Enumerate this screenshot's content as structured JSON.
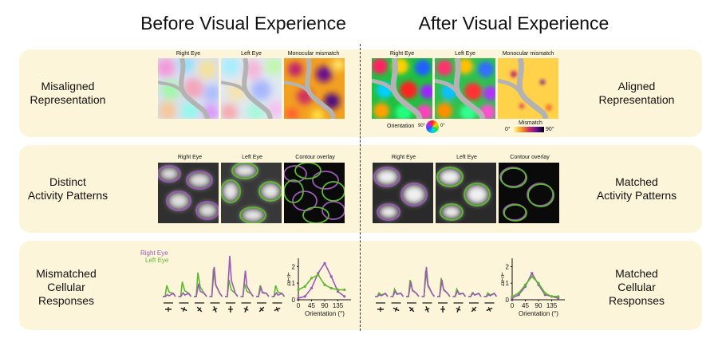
{
  "titles": {
    "before": "Before Visual Experience",
    "after": "After Visual Experience"
  },
  "rows": {
    "row1": {
      "left": "Misaligned\nRepresentation",
      "right": "Aligned\nRepresentation"
    },
    "row2": {
      "left": "Distinct\nActivity Patterns",
      "right": "Matched\nActivity Patterns"
    },
    "row3": {
      "left": "Mismatched\nCellular\nResponses",
      "right": "Matched\nCellular\nResponses"
    }
  },
  "panel_captions": {
    "right_eye": "Right Eye",
    "left_eye": "Left Eye",
    "mismatch": "Monocular mismatch",
    "contour": "Contour overlay"
  },
  "legends": {
    "orientation_label": "Orientation",
    "orientation_90": "90°",
    "orientation_0": "0°",
    "mismatch_title": "Mismatch",
    "mismatch_0": "0°",
    "mismatch_90": "90°"
  },
  "responses": {
    "right_eye": "Right Eye",
    "left_eye": "Left Eye"
  },
  "colors": {
    "background_band": "#fcf5da",
    "right_eye": "#9b59b6",
    "left_eye": "#5cb82e",
    "gray_vessel": "#b0b0b0"
  },
  "chart_data": [
    {
      "type": "line",
      "panel": "before",
      "xlabel": "Orientation (°)",
      "ylabel": "ΔF/F",
      "x_ticks": [
        0,
        45,
        90,
        135
      ],
      "y_ticks": [
        0,
        1,
        2
      ],
      "xlim": [
        0,
        180
      ],
      "ylim": [
        0,
        2.5
      ],
      "series": [
        {
          "name": "Right Eye",
          "x": [
            0,
            22.5,
            45,
            67.5,
            90,
            112.5,
            135,
            157.5
          ],
          "y": [
            0.1,
            0.2,
            0.7,
            1.6,
            2.2,
            1.4,
            0.5,
            0.2
          ]
        },
        {
          "name": "Left Eye",
          "x": [
            0,
            22.5,
            45,
            67.5,
            90,
            112.5,
            135,
            157.5
          ],
          "y": [
            0.6,
            0.8,
            1.3,
            1.5,
            0.9,
            0.7,
            0.6,
            0.6
          ]
        }
      ]
    },
    {
      "type": "line",
      "panel": "after",
      "xlabel": "Orientation (°)",
      "ylabel": "ΔF/F",
      "x_ticks": [
        0,
        45,
        90,
        135
      ],
      "y_ticks": [
        0,
        1,
        2
      ],
      "xlim": [
        0,
        180
      ],
      "ylim": [
        0,
        2.5
      ],
      "series": [
        {
          "name": "Right Eye",
          "x": [
            0,
            22.5,
            45,
            67.5,
            90,
            112.5,
            135,
            157.5
          ],
          "y": [
            0.1,
            0.3,
            0.8,
            1.6,
            0.9,
            0.3,
            0.2,
            0.1
          ]
        },
        {
          "name": "Left Eye",
          "x": [
            0,
            22.5,
            45,
            67.5,
            90,
            112.5,
            135,
            157.5
          ],
          "y": [
            0.2,
            0.4,
            0.9,
            1.4,
            1.0,
            0.4,
            0.2,
            0.2
          ]
        }
      ]
    }
  ]
}
